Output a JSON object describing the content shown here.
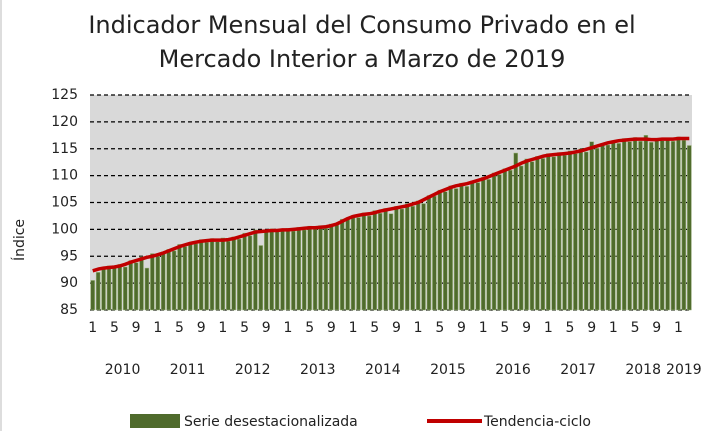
{
  "chart_data": {
    "type": "bar",
    "title": "Indicador Mensual del Consumo Privado en el Mercado Interior a Marzo de 2019",
    "y_label": "Índice",
    "categories": [
      "1",
      null,
      null,
      null,
      "5",
      null,
      null,
      null,
      "9",
      null,
      null,
      null,
      "1",
      null,
      null,
      null,
      "5",
      null,
      null,
      null,
      "9",
      null,
      null,
      null,
      "1",
      null,
      null,
      null,
      "5",
      null,
      null,
      null,
      "9",
      null,
      null,
      null,
      "1",
      null,
      null,
      null,
      "5",
      null,
      null,
      null,
      "9",
      null,
      null,
      null,
      "1",
      null,
      null,
      null,
      "5",
      null,
      null,
      null,
      "9",
      null,
      null,
      null,
      "1",
      null,
      null,
      null,
      "5",
      null,
      null,
      null,
      "9",
      null,
      null,
      null,
      "1",
      null,
      null,
      null,
      "5",
      null,
      null,
      null,
      "9",
      null,
      null,
      null,
      "1",
      null,
      null,
      null,
      "5",
      null,
      null,
      null,
      "9",
      null,
      null,
      null,
      "1",
      null,
      null,
      null,
      "5",
      null,
      null,
      null,
      "9",
      null,
      null,
      null,
      "1",
      null,
      null
    ],
    "years": [
      "2010",
      "2011",
      "2012",
      "2013",
      "2014",
      "2015",
      "2016",
      "2017",
      "2018",
      "2019"
    ],
    "series": [
      {
        "name": "Serie desestacionalizada",
        "type": "bar",
        "color": "#4f6b2c",
        "values": [
          90.5,
          92.0,
          92.6,
          93.2,
          92.8,
          93.5,
          93.0,
          94.2,
          93.8,
          94.9,
          92.8,
          95.5,
          95.0,
          95.8,
          96.3,
          96.0,
          97.2,
          96.8,
          97.6,
          97.3,
          98.1,
          97.6,
          98.3,
          97.7,
          98.4,
          97.8,
          98.6,
          98.2,
          99.3,
          98.8,
          99.9,
          97.0,
          99.5,
          100.1,
          99.6,
          99.9,
          100.2,
          99.7,
          100.4,
          99.9,
          100.6,
          100.1,
          100.7,
          100.2,
          101.0,
          100.8,
          101.9,
          102.1,
          102.6,
          102.2,
          103.1,
          102.5,
          103.5,
          103.0,
          103.9,
          102.9,
          104.3,
          103.8,
          104.8,
          104.3,
          105.3,
          104.8,
          106.3,
          106.2,
          107.3,
          107.0,
          108.1,
          107.6,
          108.6,
          108.0,
          109.0,
          108.7,
          109.7,
          109.3,
          110.5,
          110.2,
          111.3,
          111.0,
          114.2,
          111.8,
          113.1,
          112.6,
          113.6,
          113.2,
          114.1,
          113.5,
          114.3,
          113.8,
          114.6,
          114.1,
          115.0,
          114.4,
          116.3,
          115.1,
          116.0,
          115.7,
          116.5,
          116.0,
          116.9,
          116.3,
          117.1,
          116.4,
          117.5,
          116.2,
          116.9,
          116.5,
          117.0,
          116.4,
          117.2,
          116.6,
          115.6
        ]
      },
      {
        "name": "Tendencia-ciclo",
        "type": "line",
        "color": "#c00000",
        "values": [
          92.3,
          92.6,
          92.8,
          92.9,
          93.0,
          93.2,
          93.5,
          93.9,
          94.2,
          94.5,
          94.8,
          95.0,
          95.3,
          95.6,
          96.0,
          96.4,
          96.8,
          97.1,
          97.4,
          97.6,
          97.8,
          97.9,
          98.0,
          98.0,
          98.0,
          98.1,
          98.3,
          98.6,
          98.9,
          99.2,
          99.5,
          99.6,
          99.7,
          99.8,
          99.8,
          99.9,
          99.9,
          100.0,
          100.1,
          100.2,
          100.3,
          100.3,
          100.4,
          100.5,
          100.7,
          101.0,
          101.5,
          102.0,
          102.4,
          102.6,
          102.8,
          102.9,
          103.1,
          103.4,
          103.6,
          103.8,
          104.0,
          104.2,
          104.4,
          104.7,
          105.0,
          105.5,
          106.0,
          106.5,
          107.0,
          107.4,
          107.8,
          108.1,
          108.3,
          108.5,
          108.8,
          109.1,
          109.4,
          109.8,
          110.2,
          110.6,
          111.0,
          111.4,
          111.8,
          112.3,
          112.7,
          113.0,
          113.3,
          113.6,
          113.8,
          113.9,
          114.0,
          114.1,
          114.2,
          114.4,
          114.6,
          114.9,
          115.2,
          115.5,
          115.8,
          116.1,
          116.3,
          116.5,
          116.6,
          116.7,
          116.8,
          116.8,
          116.8,
          116.7,
          116.7,
          116.8,
          116.8,
          116.8,
          116.9,
          116.9,
          116.9
        ]
      }
    ],
    "ylim": [
      85,
      125
    ],
    "yticks": [
      85,
      90,
      95,
      100,
      105,
      110,
      115,
      120,
      125
    ],
    "grid": true
  }
}
